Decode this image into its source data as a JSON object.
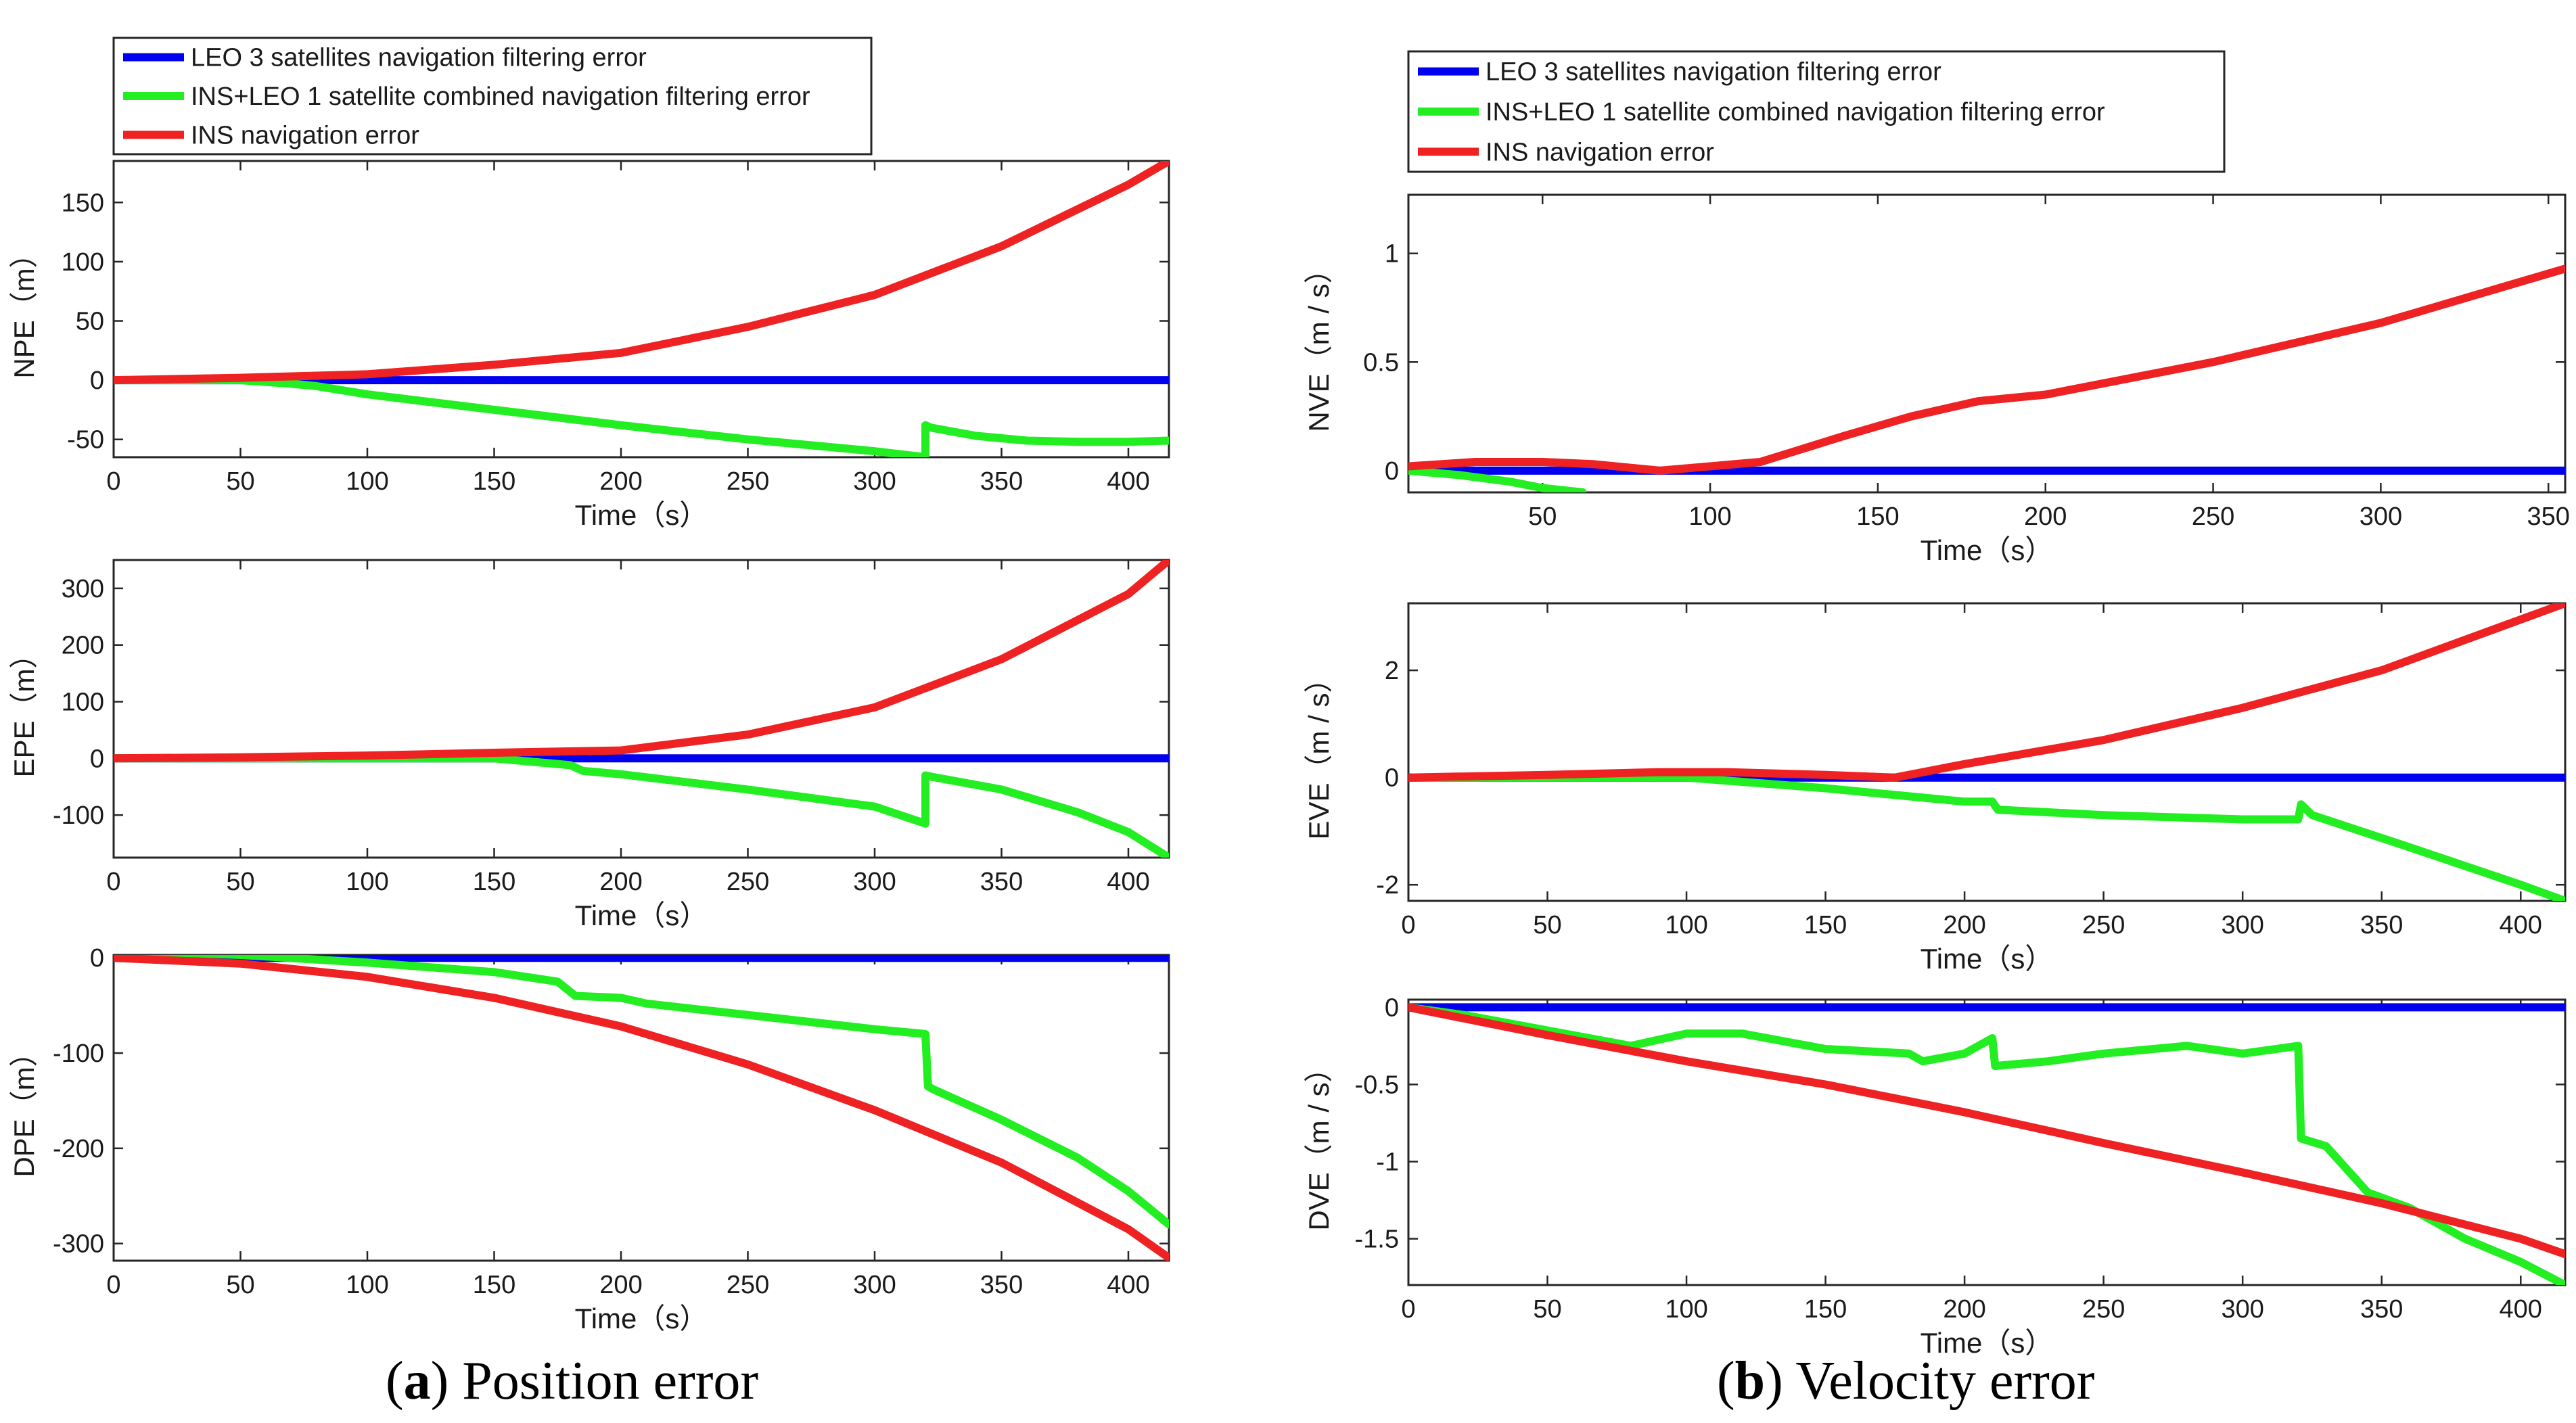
{
  "figure": {
    "captions": [
      {
        "label": "a",
        "text": "Position error"
      },
      {
        "label": "b",
        "text": "Velocity error"
      }
    ]
  },
  "chart_data": [
    {
      "id": "npe",
      "type": "line",
      "panel": "a",
      "xlabel": "Time（s）",
      "ylabel": "NPE（m）",
      "xlim": [
        0,
        416
      ],
      "ylim": [
        -65,
        185
      ],
      "xticks": [
        0,
        50,
        100,
        150,
        200,
        250,
        300,
        350,
        400
      ],
      "yticks": [
        150,
        100,
        50,
        0,
        -50
      ],
      "legend": {
        "position": "top",
        "show": true,
        "entries": [
          "LEO 3 satellites navigation filtering error",
          "INS+LEO 1 satellite combined navigation filtering error",
          "INS navigation error"
        ]
      },
      "series": [
        {
          "name": "LEO 3 satellites navigation filtering error",
          "color": "#0000ee",
          "x": [
            0,
            100,
            200,
            300,
            416
          ],
          "y": [
            0,
            0,
            0,
            0,
            0
          ]
        },
        {
          "name": "INS+LEO 1 satellite combined navigation filtering error",
          "color": "#22ee22",
          "x": [
            0,
            50,
            70,
            80,
            100,
            150,
            200,
            250,
            300,
            320,
            320,
            322,
            340,
            360,
            380,
            400,
            416
          ],
          "y": [
            0,
            0,
            -3,
            -5,
            -12,
            -25,
            -38,
            -50,
            -60,
            -65,
            -38,
            -40,
            -47,
            -51,
            -52,
            -52,
            -51
          ]
        },
        {
          "name": "INS navigation error",
          "color": "#ee2222",
          "x": [
            0,
            50,
            100,
            150,
            200,
            250,
            300,
            350,
            400,
            416
          ],
          "y": [
            0,
            2,
            5,
            13,
            23,
            45,
            72,
            113,
            165,
            185
          ]
        }
      ]
    },
    {
      "id": "epe",
      "type": "line",
      "panel": "a",
      "xlabel": "Time（s）",
      "ylabel": "EPE（m）",
      "xlim": [
        0,
        416
      ],
      "ylim": [
        -175,
        350
      ],
      "xticks": [
        0,
        50,
        100,
        150,
        200,
        250,
        300,
        350,
        400
      ],
      "yticks": [
        300,
        200,
        100,
        0,
        -100
      ],
      "series": [
        {
          "name": "LEO 3 satellites navigation filtering error",
          "color": "#0000ee",
          "x": [
            0,
            100,
            200,
            300,
            416
          ],
          "y": [
            0,
            0,
            0,
            0,
            0
          ]
        },
        {
          "name": "INS+LEO 1 satellite combined navigation filtering error",
          "color": "#22ee22",
          "x": [
            0,
            50,
            100,
            150,
            170,
            180,
            185,
            200,
            250,
            300,
            320,
            320,
            322,
            350,
            380,
            400,
            416
          ],
          "y": [
            0,
            0,
            0,
            0,
            -8,
            -12,
            -22,
            -28,
            -55,
            -85,
            -115,
            -30,
            -32,
            -55,
            -95,
            -130,
            -175
          ]
        },
        {
          "name": "INS navigation error",
          "color": "#ee2222",
          "x": [
            0,
            50,
            100,
            150,
            200,
            250,
            300,
            350,
            400,
            416
          ],
          "y": [
            0,
            2,
            5,
            10,
            14,
            42,
            90,
            175,
            290,
            350
          ]
        }
      ]
    },
    {
      "id": "dpe",
      "type": "line",
      "panel": "a",
      "xlabel": "Time（s）",
      "ylabel": "DPE（m）",
      "xlim": [
        0,
        416
      ],
      "ylim": [
        -318,
        3
      ],
      "xticks": [
        0,
        50,
        100,
        150,
        200,
        250,
        300,
        350,
        400
      ],
      "yticks": [
        0,
        -100,
        -200,
        -300
      ],
      "series": [
        {
          "name": "LEO 3 satellites navigation filtering error",
          "color": "#0000ee",
          "x": [
            0,
            100,
            200,
            300,
            416
          ],
          "y": [
            0,
            0,
            0,
            0,
            0
          ]
        },
        {
          "name": "INS+LEO 1 satellite combined navigation filtering error",
          "color": "#22ee22",
          "x": [
            0,
            30,
            50,
            100,
            150,
            175,
            182,
            200,
            210,
            250,
            300,
            320,
            321,
            323,
            350,
            380,
            400,
            416
          ],
          "y": [
            0,
            5,
            3,
            -5,
            -15,
            -25,
            -40,
            -42,
            -48,
            -60,
            -75,
            -80,
            -135,
            -138,
            -170,
            -210,
            -245,
            -280
          ]
        },
        {
          "name": "INS navigation error",
          "color": "#ee2222",
          "x": [
            0,
            50,
            100,
            150,
            200,
            250,
            300,
            350,
            400,
            416
          ],
          "y": [
            0,
            -6,
            -20,
            -42,
            -72,
            -112,
            -160,
            -215,
            -285,
            -315
          ]
        }
      ]
    },
    {
      "id": "nve",
      "type": "line",
      "panel": "b",
      "xlabel": "Time（s）",
      "ylabel": "NVE（m / s）",
      "xlim": [
        10,
        355
      ],
      "ylim": [
        -0.1,
        1.27
      ],
      "xticks": [
        50,
        100,
        150,
        200,
        250,
        300,
        350
      ],
      "yticks": [
        1,
        0.5,
        0
      ],
      "legend": {
        "position": "top",
        "show": true,
        "entries": [
          "LEO 3 satellites navigation filtering error",
          "INS+LEO 1 satellite combined navigation filtering error",
          "INS navigation error"
        ]
      },
      "series": [
        {
          "name": "LEO 3 satellites navigation filtering error",
          "color": "#0000ee",
          "x": [
            10,
            100,
            200,
            300,
            355
          ],
          "y": [
            0,
            0,
            0,
            0,
            0
          ]
        },
        {
          "name": "INS+LEO 1 satellite combined navigation filtering error",
          "color": "#22ee22",
          "x": [
            10,
            25,
            40,
            50,
            62
          ],
          "y": [
            0,
            -0.02,
            -0.05,
            -0.08,
            -0.1
          ]
        },
        {
          "name": "INS navigation error",
          "color": "#ee2222",
          "x": [
            10,
            30,
            50,
            65,
            85,
            100,
            115,
            140,
            160,
            180,
            200,
            250,
            300,
            355
          ],
          "y": [
            0.02,
            0.04,
            0.04,
            0.03,
            0.0,
            0.02,
            0.04,
            0.16,
            0.25,
            0.32,
            0.35,
            0.5,
            0.68,
            0.93
          ]
        }
      ]
    },
    {
      "id": "eve",
      "type": "line",
      "panel": "b",
      "xlabel": "Time（s）",
      "ylabel": "EVE（m / s）",
      "xlim": [
        0,
        416
      ],
      "ylim": [
        -2.3,
        3.25
      ],
      "xticks": [
        0,
        50,
        100,
        150,
        200,
        250,
        300,
        350,
        400
      ],
      "yticks": [
        2,
        0,
        -2
      ],
      "series": [
        {
          "name": "LEO 3 satellites navigation filtering error",
          "color": "#0000ee",
          "x": [
            0,
            100,
            200,
            300,
            416
          ],
          "y": [
            0,
            0,
            0,
            0,
            0
          ]
        },
        {
          "name": "INS+LEO 1 satellite combined navigation filtering error",
          "color": "#22ee22",
          "x": [
            0,
            50,
            100,
            150,
            200,
            210,
            212,
            250,
            300,
            320,
            321,
            325,
            360,
            400,
            416
          ],
          "y": [
            0,
            0,
            0,
            -0.2,
            -0.45,
            -0.45,
            -0.6,
            -0.7,
            -0.78,
            -0.78,
            -0.5,
            -0.7,
            -1.3,
            -2.0,
            -2.3
          ]
        },
        {
          "name": "INS navigation error",
          "color": "#ee2222",
          "x": [
            0,
            50,
            90,
            115,
            150,
            175,
            200,
            250,
            300,
            350,
            416
          ],
          "y": [
            0,
            0.05,
            0.1,
            0.1,
            0.05,
            0.0,
            0.25,
            0.7,
            1.3,
            2.0,
            3.25
          ]
        }
      ]
    },
    {
      "id": "dve",
      "type": "line",
      "panel": "b",
      "xlabel": "Time（s）",
      "ylabel": "DVE（m / s）",
      "xlim": [
        0,
        416
      ],
      "ylim": [
        -1.8,
        0.05
      ],
      "xticks": [
        0,
        50,
        100,
        150,
        200,
        250,
        300,
        350,
        400
      ],
      "yticks": [
        0,
        -0.5,
        -1,
        -1.5
      ],
      "series": [
        {
          "name": "LEO 3 satellites navigation filtering error",
          "color": "#0000ee",
          "x": [
            0,
            100,
            200,
            300,
            416
          ],
          "y": [
            0,
            0,
            0,
            0,
            0
          ]
        },
        {
          "name": "INS+LEO 1 satellite combined navigation filtering error",
          "color": "#22ee22",
          "x": [
            0,
            20,
            50,
            80,
            100,
            120,
            150,
            180,
            185,
            200,
            210,
            211,
            230,
            250,
            280,
            300,
            320,
            321,
            330,
            345,
            360,
            380,
            400,
            416
          ],
          "y": [
            0,
            -0.05,
            -0.15,
            -0.25,
            -0.17,
            -0.17,
            -0.27,
            -0.3,
            -0.35,
            -0.3,
            -0.2,
            -0.38,
            -0.35,
            -0.3,
            -0.25,
            -0.3,
            -0.25,
            -0.85,
            -0.9,
            -1.2,
            -1.3,
            -1.5,
            -1.65,
            -1.8
          ]
        },
        {
          "name": "INS navigation error",
          "color": "#ee2222",
          "x": [
            0,
            50,
            100,
            150,
            200,
            250,
            300,
            350,
            400,
            416
          ],
          "y": [
            0,
            -0.18,
            -0.35,
            -0.5,
            -0.68,
            -0.88,
            -1.07,
            -1.27,
            -1.5,
            -1.6
          ]
        }
      ]
    }
  ]
}
